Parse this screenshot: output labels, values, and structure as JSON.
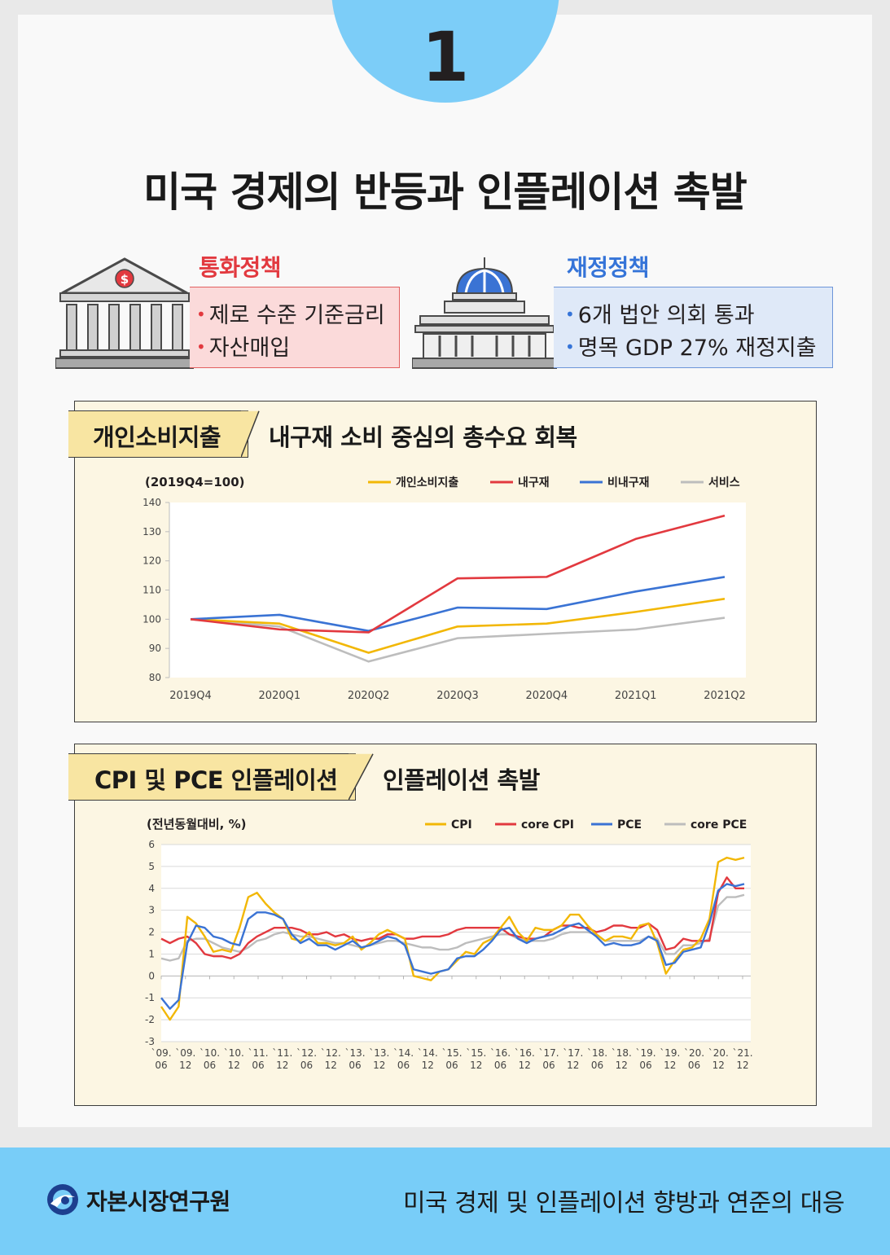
{
  "page": {
    "number": "1",
    "title": "미국 경제의 반등과 인플레이션 촉발"
  },
  "monetary": {
    "title": "통화정책",
    "items": [
      "제로 수준 기준금리",
      "자산매입"
    ],
    "title_color": "#e2393f"
  },
  "fiscal": {
    "title": "재정정책",
    "items": [
      "6개 법안 의회 통과",
      "명목 GDP 27% 재정지출"
    ],
    "title_color": "#3574d8"
  },
  "chart1": {
    "tag": "개인소비지출",
    "subtitle": "내구재 소비 중심의 총수요 회복"
  },
  "chart2": {
    "tag": "CPI 및 PCE 인플레이션",
    "subtitle": "인플레이션 촉발"
  },
  "footer": {
    "org": "자본시장연구원",
    "report": "미국 경제 및 인플레이션 향방과 연준의 대응"
  },
  "colors": {
    "accent_blue": "#78cdf8",
    "panel_bg": "#fcf6e3",
    "tag_bg": "#f8e5a2",
    "series_yellow": "#f2b705",
    "series_red": "#e2393f",
    "series_blue": "#3a73d4",
    "series_gray": "#bdbdbd"
  },
  "chart_data": [
    {
      "type": "line",
      "unit_label": "(2019Q4=100)",
      "categories": [
        "2019Q4",
        "2020Q1",
        "2020Q2",
        "2020Q3",
        "2020Q4",
        "2021Q1",
        "2021Q2"
      ],
      "ylim": [
        80,
        140
      ],
      "yticks": [
        80,
        90,
        100,
        110,
        120,
        130,
        140
      ],
      "grid": false,
      "legend_position": "top-right",
      "series": [
        {
          "name": "개인소비지출",
          "color": "#f2b705",
          "values": [
            100,
            98.5,
            88.5,
            97.5,
            98.5,
            102.5,
            107
          ]
        },
        {
          "name": "내구재",
          "color": "#e2393f",
          "values": [
            100,
            96.5,
            95.5,
            114,
            114.5,
            127.5,
            135.5
          ]
        },
        {
          "name": "비내구재",
          "color": "#3a73d4",
          "values": [
            100,
            101.5,
            96,
            104,
            103.5,
            109.5,
            114.5
          ]
        },
        {
          "name": "서비스",
          "color": "#bdbdbd",
          "values": [
            100,
            97.5,
            85.5,
            93.5,
            95,
            96.5,
            100.5
          ]
        }
      ]
    },
    {
      "type": "line",
      "unit_label": "(전년동월대비, %)",
      "ylim": [
        -3,
        6
      ],
      "yticks": [
        -3,
        -2,
        -1,
        0,
        1,
        2,
        3,
        4,
        5,
        6
      ],
      "grid": true,
      "legend_position": "top-right",
      "x_ticks": [
        {
          "year": "`09.",
          "month": "06"
        },
        {
          "year": "`09.",
          "month": "12"
        },
        {
          "year": "`10.",
          "month": "06"
        },
        {
          "year": "`10.",
          "month": "12"
        },
        {
          "year": "`11.",
          "month": "06"
        },
        {
          "year": "`11.",
          "month": "12"
        },
        {
          "year": "`12.",
          "month": "06"
        },
        {
          "year": "`12.",
          "month": "12"
        },
        {
          "year": "`13.",
          "month": "06"
        },
        {
          "year": "`13.",
          "month": "12"
        },
        {
          "year": "`14.",
          "month": "06"
        },
        {
          "year": "`14.",
          "month": "12"
        },
        {
          "year": "`15.",
          "month": "06"
        },
        {
          "year": "`15.",
          "month": "12"
        },
        {
          "year": "`16.",
          "month": "06"
        },
        {
          "year": "`16.",
          "month": "12"
        },
        {
          "year": "`17.",
          "month": "06"
        },
        {
          "year": "`17.",
          "month": "12"
        },
        {
          "year": "`18.",
          "month": "06"
        },
        {
          "year": "`18.",
          "month": "12"
        },
        {
          "year": "`19.",
          "month": "06"
        },
        {
          "year": "`19.",
          "month": "12"
        },
        {
          "year": "`20.",
          "month": "06"
        },
        {
          "year": "`20.",
          "month": "12"
        },
        {
          "year": "`21.",
          "month": "12"
        }
      ],
      "x_period": "2009-06 to 2021-12, quarterly",
      "series": [
        {
          "name": "CPI",
          "color": "#f2b705",
          "values": [
            -1.4,
            -2.0,
            -1.4,
            2.7,
            2.4,
            1.8,
            1.1,
            1.2,
            1.1,
            2.2,
            3.6,
            3.8,
            3.3,
            2.9,
            2.6,
            1.7,
            1.6,
            2.0,
            1.5,
            1.5,
            1.4,
            1.5,
            1.8,
            1.2,
            1.5,
            1.9,
            2.1,
            1.9,
            1.7,
            0.0,
            -0.1,
            -0.2,
            0.2,
            0.3,
            0.7,
            1.1,
            1.0,
            1.5,
            1.7,
            2.2,
            2.7,
            2.0,
            1.6,
            2.2,
            2.1,
            2.1,
            2.3,
            2.8,
            2.8,
            2.3,
            1.9,
            1.6,
            1.8,
            1.8,
            1.7,
            2.3,
            2.4,
            1.5,
            0.1,
            0.7,
            1.2,
            1.3,
            1.7,
            2.6,
            5.2,
            5.4,
            5.3,
            5.4
          ]
        },
        {
          "name": "core CPI",
          "color": "#e2393f",
          "values": [
            1.7,
            1.5,
            1.7,
            1.8,
            1.5,
            1.0,
            0.9,
            0.9,
            0.8,
            1.0,
            1.5,
            1.8,
            2.0,
            2.2,
            2.2,
            2.2,
            2.1,
            1.9,
            1.9,
            2.0,
            1.8,
            1.9,
            1.7,
            1.6,
            1.7,
            1.7,
            1.9,
            1.9,
            1.7,
            1.7,
            1.8,
            1.8,
            1.8,
            1.9,
            2.1,
            2.2,
            2.2,
            2.2,
            2.2,
            2.2,
            1.9,
            1.8,
            1.7,
            1.7,
            1.8,
            2.1,
            2.3,
            2.3,
            2.2,
            2.2,
            2.0,
            2.1,
            2.3,
            2.3,
            2.2,
            2.2,
            2.4,
            2.1,
            1.2,
            1.3,
            1.7,
            1.6,
            1.6,
            1.6,
            3.8,
            4.5,
            4.0,
            4.0
          ]
        },
        {
          "name": "PCE",
          "color": "#3a73d4",
          "values": [
            -1.0,
            -1.5,
            -1.1,
            1.5,
            2.3,
            2.2,
            1.8,
            1.7,
            1.5,
            1.4,
            2.6,
            2.9,
            2.9,
            2.8,
            2.6,
            1.9,
            1.5,
            1.7,
            1.4,
            1.4,
            1.2,
            1.4,
            1.6,
            1.3,
            1.4,
            1.6,
            1.8,
            1.7,
            1.4,
            0.3,
            0.2,
            0.1,
            0.2,
            0.3,
            0.8,
            0.9,
            0.9,
            1.2,
            1.6,
            2.1,
            2.2,
            1.7,
            1.5,
            1.7,
            1.8,
            1.9,
            2.1,
            2.3,
            2.4,
            2.1,
            1.8,
            1.4,
            1.5,
            1.4,
            1.4,
            1.5,
            1.8,
            1.6,
            0.5,
            0.6,
            1.1,
            1.2,
            1.3,
            2.4,
            3.9,
            4.2,
            4.1,
            4.2
          ]
        },
        {
          "name": "core PCE",
          "color": "#bdbdbd",
          "values": [
            0.8,
            0.7,
            0.8,
            1.6,
            1.7,
            1.7,
            1.5,
            1.3,
            1.2,
            1.1,
            1.3,
            1.6,
            1.7,
            1.9,
            2.0,
            1.9,
            1.8,
            1.8,
            1.7,
            1.6,
            1.5,
            1.5,
            1.4,
            1.3,
            1.4,
            1.5,
            1.6,
            1.6,
            1.5,
            1.4,
            1.3,
            1.3,
            1.2,
            1.2,
            1.3,
            1.5,
            1.6,
            1.7,
            1.8,
            1.9,
            1.9,
            1.7,
            1.6,
            1.6,
            1.6,
            1.7,
            1.9,
            2.0,
            2.0,
            2.0,
            1.9,
            1.6,
            1.6,
            1.6,
            1.6,
            1.6,
            1.8,
            1.7,
            1.0,
            1.0,
            1.4,
            1.4,
            1.5,
            1.7,
            3.2,
            3.6,
            3.6,
            3.7
          ]
        }
      ]
    }
  ]
}
